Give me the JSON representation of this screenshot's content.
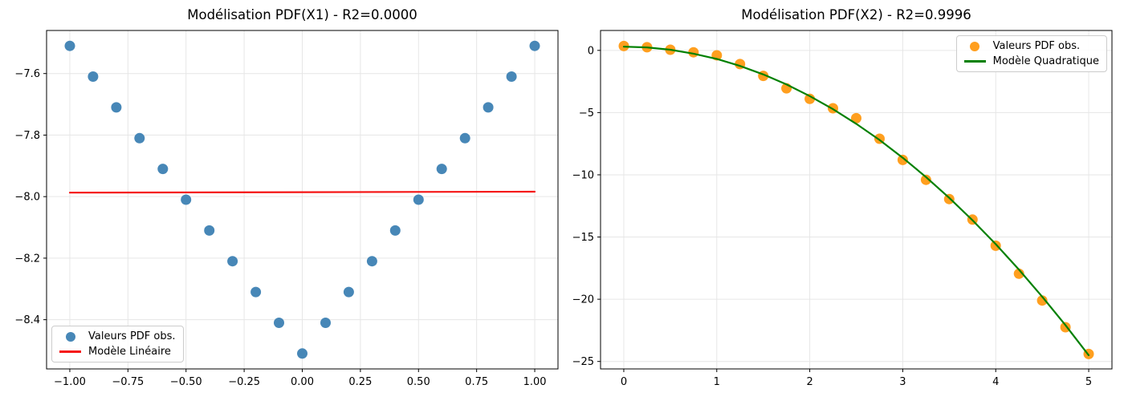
{
  "style": {
    "background": "#ffffff",
    "grid_color": "#e6e6e6",
    "spine_color": "#000000",
    "blue": "#4787b7",
    "red": "#f51414",
    "orange": "#ff9f1f",
    "green": "#008000"
  },
  "chart_data": [
    {
      "type": "scatter",
      "title": "Modélisation PDF(X1) - R2=0.0000",
      "xlabel": "",
      "ylabel": "",
      "grid": true,
      "xlim": [
        -1.1,
        1.1
      ],
      "ylim": [
        -8.56,
        -7.46
      ],
      "xticks": {
        "values": [
          -1.0,
          -0.75,
          -0.5,
          -0.25,
          0.0,
          0.25,
          0.5,
          0.75,
          1.0
        ],
        "labels": [
          "−1.00",
          "−0.75",
          "−0.50",
          "−0.25",
          "0.00",
          "0.25",
          "0.50",
          "0.75",
          "1.00"
        ]
      },
      "yticks": {
        "values": [
          -7.6,
          -7.8,
          -8.0,
          -8.2,
          -8.4
        ],
        "labels": [
          "−7.6",
          "−7.8",
          "−8.0",
          "−8.2",
          "−8.4"
        ]
      },
      "series": [
        {
          "name": "Valeurs PDF obs.",
          "kind": "scatter",
          "color": "#4787b7",
          "x": [
            -1.0,
            -0.9,
            -0.8,
            -0.7,
            -0.6,
            -0.5,
            -0.4,
            -0.3,
            -0.2,
            -0.1,
            0.0,
            0.1,
            0.2,
            0.3,
            0.4,
            0.5,
            0.6,
            0.7,
            0.8,
            0.9,
            1.0
          ],
          "y": [
            -7.51,
            -7.61,
            -7.71,
            -7.81,
            -7.91,
            -8.01,
            -8.11,
            -8.21,
            -8.31,
            -8.41,
            -8.51,
            -8.41,
            -8.31,
            -8.21,
            -8.11,
            -8.01,
            -7.91,
            -7.81,
            -7.71,
            -7.61,
            -7.51
          ]
        },
        {
          "name": "Modèle Linéaire",
          "kind": "line",
          "color": "#f51414",
          "x": [
            -1.0,
            1.0
          ],
          "y": [
            -7.987,
            -7.984
          ]
        }
      ],
      "legend": {
        "position": "lower-left",
        "items": [
          {
            "label": "Valeurs PDF obs.",
            "marker": "dot",
            "color": "#4787b7"
          },
          {
            "label": "Modèle Linéaire",
            "marker": "line",
            "color": "#f51414"
          }
        ]
      }
    },
    {
      "type": "scatter",
      "title": "Modélisation PDF(X2) - R2=0.9996",
      "xlabel": "",
      "ylabel": "",
      "grid": true,
      "xlim": [
        -0.25,
        5.25
      ],
      "ylim": [
        -25.6,
        1.6
      ],
      "xticks": {
        "values": [
          0,
          1,
          2,
          3,
          4,
          5
        ],
        "labels": [
          "0",
          "1",
          "2",
          "3",
          "4",
          "5"
        ]
      },
      "yticks": {
        "values": [
          0,
          -5,
          -10,
          -15,
          -20,
          -25
        ],
        "labels": [
          "0",
          "−5",
          "−10",
          "−15",
          "−20",
          "−25"
        ]
      },
      "series": [
        {
          "name": "Valeurs PDF obs.",
          "kind": "scatter",
          "color": "#ff9f1f",
          "x": [
            0.0,
            0.25,
            0.5,
            0.75,
            1.0,
            1.25,
            1.5,
            1.75,
            2.0,
            2.25,
            2.5,
            2.75,
            3.0,
            3.25,
            3.5,
            3.75,
            4.0,
            4.25,
            4.5,
            4.75,
            5.0
          ],
          "y": [
            0.35,
            0.25,
            0.05,
            -0.15,
            -0.4,
            -1.1,
            -2.05,
            -3.05,
            -3.9,
            -4.65,
            -5.45,
            -7.1,
            -8.8,
            -10.4,
            -11.95,
            -13.6,
            -15.7,
            -17.95,
            -20.1,
            -22.25,
            -24.4
          ]
        },
        {
          "name": "Modèle Quadratique",
          "kind": "line",
          "color": "#008000",
          "x": [
            0.0,
            0.25,
            0.5,
            0.75,
            1.0,
            1.25,
            1.5,
            1.75,
            2.0,
            2.25,
            2.5,
            2.75,
            3.0,
            3.25,
            3.5,
            3.75,
            4.0,
            4.25,
            4.5,
            4.75,
            5.0
          ],
          "y": [
            0.3,
            0.24,
            0.05,
            -0.26,
            -0.69,
            -1.25,
            -1.93,
            -2.74,
            -3.67,
            -4.72,
            -5.9,
            -7.2,
            -8.63,
            -10.18,
            -11.85,
            -13.65,
            -15.57,
            -17.62,
            -19.79,
            -22.08,
            -24.5
          ]
        }
      ],
      "legend": {
        "position": "upper-right",
        "items": [
          {
            "label": "Valeurs PDF obs.",
            "marker": "dot",
            "color": "#ff9f1f"
          },
          {
            "label": "Modèle Quadratique",
            "marker": "line",
            "color": "#008000"
          }
        ]
      }
    }
  ]
}
